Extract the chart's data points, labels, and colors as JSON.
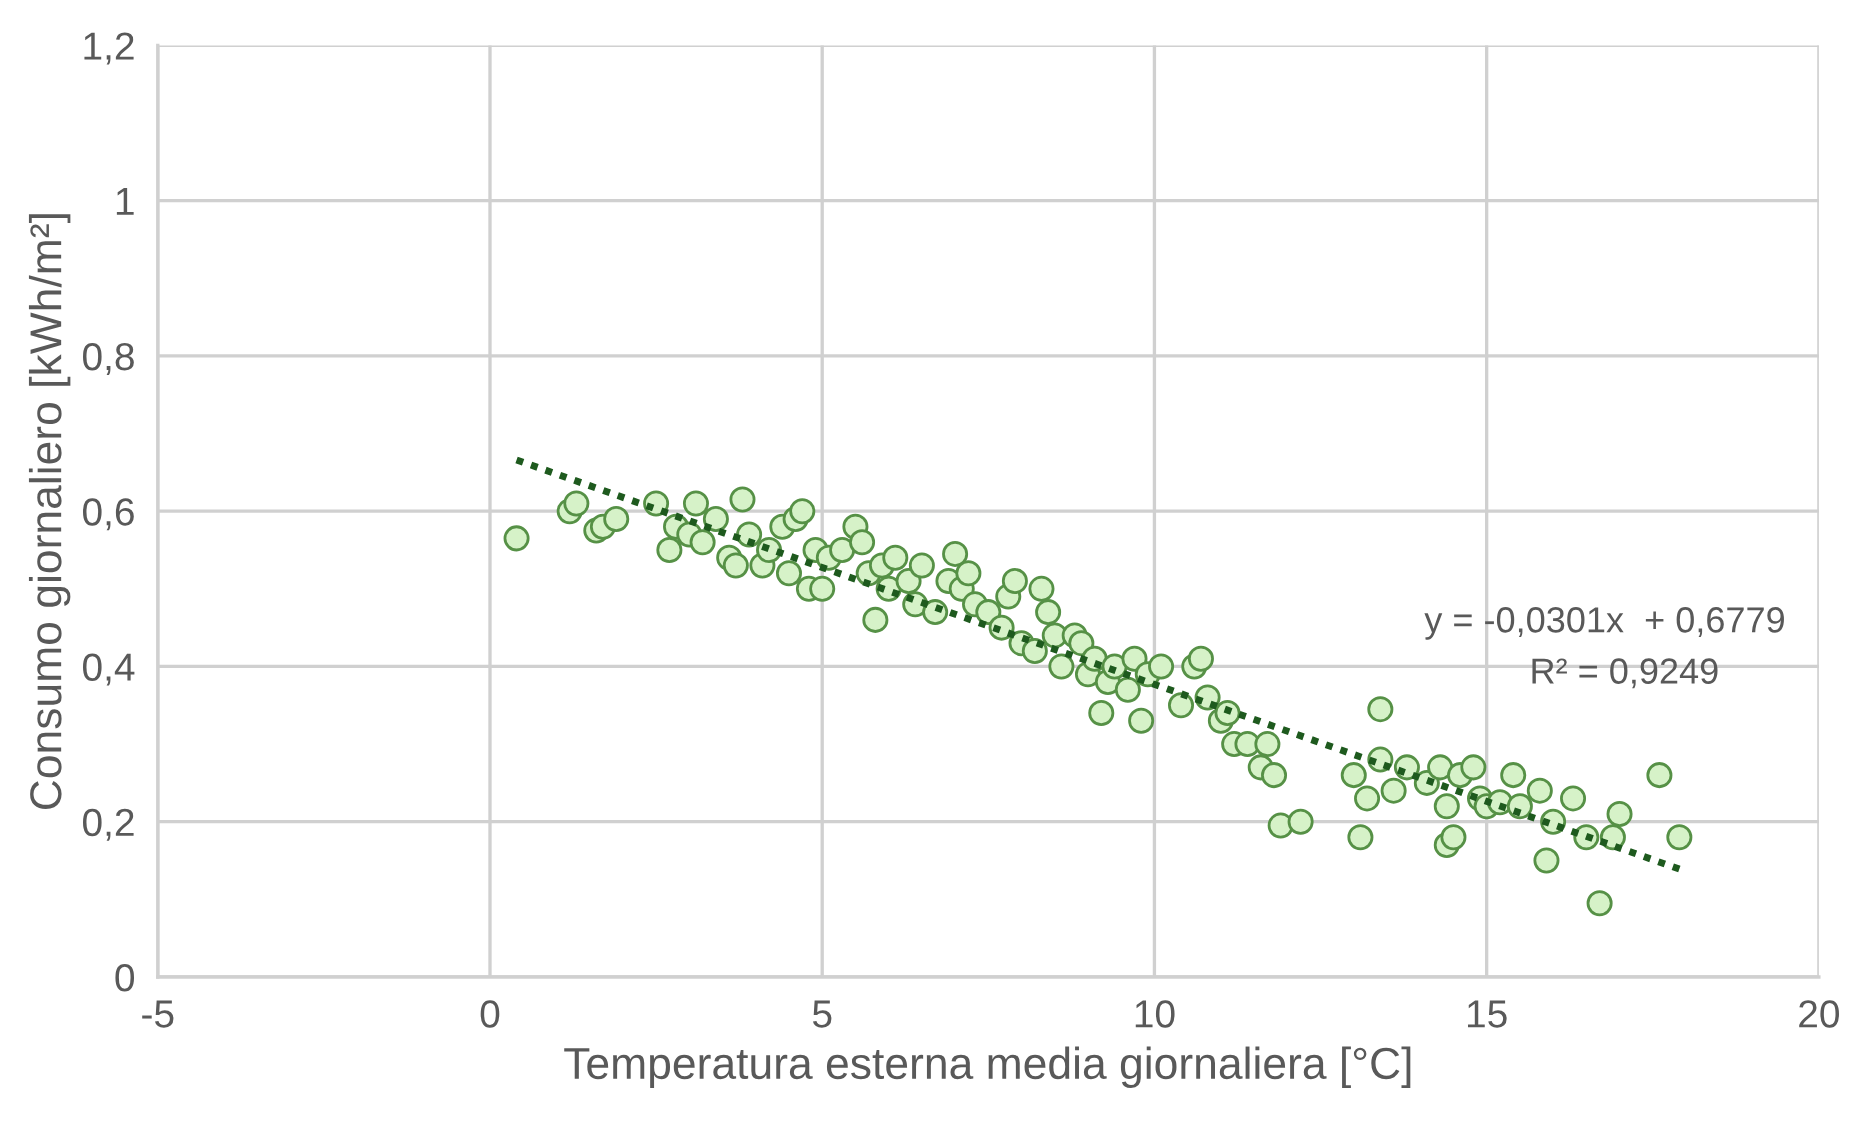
{
  "chart_data": {
    "type": "scatter",
    "xlabel": "Temperatura esterna media giornaliera [°C]",
    "ylabel": "Consumo giornaliero [kWh/m²]",
    "xlim": [
      -5,
      20
    ],
    "xticks": [
      -5,
      0,
      5,
      10,
      15,
      20
    ],
    "ylim": [
      0,
      1.2
    ],
    "yticks": [
      0,
      {
        "value": 0.2,
        "label": "0,2"
      },
      {
        "value": 0.4,
        "label": "0,4"
      },
      {
        "value": 0.6,
        "label": "0,6"
      },
      {
        "value": 0.8,
        "label": "0,8"
      },
      1,
      {
        "value": 1.2,
        "label": "1,2"
      }
    ],
    "grid": true,
    "legend": false,
    "marker": "circle",
    "annotations": [
      "y = -0,0301x  + 0,6779",
      "R² = 0,9249"
    ],
    "series": [
      {
        "color": "#d6f2c8",
        "x": [
          0.4,
          1.2,
          1.3,
          1.6,
          1.7,
          1.9,
          2.5,
          2.7,
          2.8,
          3.0,
          3.1,
          3.2,
          3.4,
          3.6,
          3.7,
          3.8,
          3.9,
          4.1,
          4.2,
          4.4,
          4.5,
          4.6,
          4.7,
          4.8,
          4.9,
          5.0,
          5.1,
          5.3,
          5.5,
          5.6,
          5.7,
          5.8,
          5.9,
          6.0,
          6.1,
          6.3,
          6.4,
          6.5,
          6.7,
          6.9,
          7.0,
          7.1,
          7.2,
          7.3,
          7.5,
          7.7,
          7.8,
          7.9,
          8.0,
          8.2,
          8.3,
          8.4,
          8.5,
          8.6,
          8.8,
          8.9,
          9.0,
          9.1,
          9.2,
          9.3,
          9.4,
          9.6,
          9.7,
          9.8,
          9.9,
          10.1,
          10.4,
          10.6,
          10.7,
          10.8,
          11.0,
          11.1,
          11.2,
          11.4,
          11.6,
          11.7,
          11.8,
          11.9,
          12.2,
          13.0,
          13.1,
          13.2,
          13.4,
          13.4,
          13.6,
          13.8,
          14.1,
          14.3,
          14.4,
          14.4,
          14.5,
          14.6,
          14.8,
          14.9,
          15.0,
          15.2,
          15.4,
          15.5,
          15.8,
          15.9,
          16.0,
          16.3,
          16.5,
          16.7,
          16.9,
          17.0,
          17.6,
          17.9
        ],
        "values": [
          0.565,
          0.6,
          0.61,
          0.575,
          0.58,
          0.59,
          0.61,
          0.55,
          0.58,
          0.57,
          0.61,
          0.56,
          0.59,
          0.54,
          0.53,
          0.615,
          0.57,
          0.53,
          0.55,
          0.58,
          0.52,
          0.59,
          0.6,
          0.5,
          0.55,
          0.5,
          0.54,
          0.55,
          0.58,
          0.56,
          0.52,
          0.46,
          0.53,
          0.5,
          0.54,
          0.51,
          0.48,
          0.53,
          0.47,
          0.51,
          0.545,
          0.5,
          0.52,
          0.48,
          0.47,
          0.45,
          0.49,
          0.51,
          0.43,
          0.42,
          0.5,
          0.47,
          0.44,
          0.4,
          0.44,
          0.43,
          0.39,
          0.41,
          0.34,
          0.38,
          0.4,
          0.37,
          0.41,
          0.33,
          0.39,
          0.4,
          0.35,
          0.4,
          0.41,
          0.36,
          0.33,
          0.34,
          0.3,
          0.3,
          0.27,
          0.3,
          0.26,
          0.195,
          0.2,
          0.26,
          0.18,
          0.23,
          0.345,
          0.28,
          0.24,
          0.27,
          0.25,
          0.27,
          0.17,
          0.22,
          0.18,
          0.26,
          0.27,
          0.23,
          0.22,
          0.225,
          0.26,
          0.22,
          0.24,
          0.15,
          0.2,
          0.23,
          0.18,
          0.095,
          0.18,
          0.21,
          0.26,
          0.18
        ]
      },
      {
        "type": "line",
        "color": "#1e5a1e",
        "line_style": "dotted",
        "marker": "none",
        "x": [
          0.4,
          17.9
        ],
        "values": [
          0.666,
          0.139
        ]
      }
    ]
  }
}
